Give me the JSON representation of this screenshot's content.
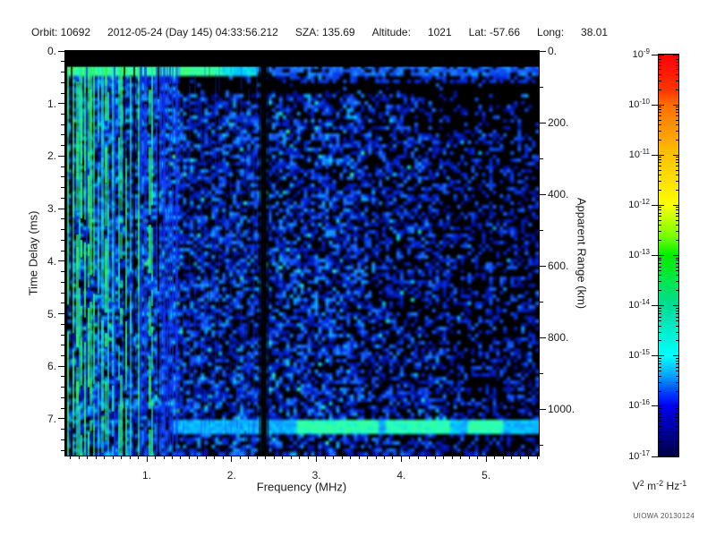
{
  "header": {
    "segments": [
      "Orbit: 10692",
      "2012-05-24 (Day 145) 04:33:56.212",
      "SZA: 135.69",
      "Altitude:",
      "1021",
      "Lat: -57.66",
      "Long:",
      "38.01"
    ]
  },
  "chart_data": {
    "type": "heatmap",
    "description": "Radar sounder ionogram spectrogram: received spectral density vs frequency and time delay. Bright green/cyan vertical striping below ~1.4 MHz (local plasma noise), a bright horizontal surface-echo band near 0.35 ms delay across all frequencies, a cyan/green horizontal echo band near 7.15 ms, a dark interference gap near 2.38 MHz, and diffuse blue speckle noise elsewhere, sparser toward high frequency.",
    "xlabel": "Frequency (MHz)",
    "ylabel_left": "Time Delay (ms)",
    "ylabel_right": "Apparent Range (km)",
    "xlim": [
      0.04,
      5.62
    ],
    "tlim": [
      0,
      7.7
    ],
    "rlim": [
      0,
      1130
    ],
    "x_major_ticks": {
      "values": [
        1,
        2,
        3,
        4,
        5
      ],
      "labels": [
        "1.",
        "2.",
        "3.",
        "4.",
        "5."
      ]
    },
    "x_minor_step_mhz": 0.1,
    "t_major_ticks": {
      "values": [
        0,
        1,
        2,
        3,
        4,
        5,
        6,
        7
      ],
      "labels": [
        "0.",
        "1.",
        "2.",
        "3.",
        "4.",
        "5.",
        "6.",
        "7."
      ]
    },
    "t_minor_step_ms": 0.2,
    "r_major_ticks": {
      "values": [
        0,
        200,
        400,
        600,
        800,
        1000
      ],
      "labels": [
        "0.",
        "200.",
        "400.",
        "600.",
        "800.",
        "1000."
      ]
    },
    "r_minor_step_km": 100,
    "grid": false,
    "colorbar": {
      "decade_exponents": [
        -9,
        -10,
        -11,
        -12,
        -13,
        -14,
        -15,
        -16,
        -17
      ],
      "base": "10",
      "unit_parts": {
        "base1": "V",
        "exp1": "2",
        "base2": "m",
        "exp2": "-2",
        "base3": "Hz",
        "exp3": "-1"
      },
      "stops": [
        {
          "p": 0.0,
          "c": "#ff0000"
        },
        {
          "p": 0.09,
          "c": "#ff3600"
        },
        {
          "p": 0.125,
          "c": "#ff6e00"
        },
        {
          "p": 0.25,
          "c": "#ffc100"
        },
        {
          "p": 0.375,
          "c": "#fbff00"
        },
        {
          "p": 0.45,
          "c": "#7bff00"
        },
        {
          "p": 0.5,
          "c": "#00ee00"
        },
        {
          "p": 0.625,
          "c": "#00dc96"
        },
        {
          "p": 0.75,
          "c": "#00ffff"
        },
        {
          "p": 0.8,
          "c": "#00a2ff"
        },
        {
          "p": 0.845,
          "c": "#0037ff"
        },
        {
          "p": 0.875,
          "c": "#0000f0"
        },
        {
          "p": 0.94,
          "c": "#000096"
        },
        {
          "p": 1.0,
          "c": "#000041"
        }
      ]
    },
    "features": {
      "blank_top_ms": 0.3,
      "surface_band_ms": [
        0.3,
        0.48
      ],
      "second_band_ms": [
        7.05,
        7.3
      ],
      "second_band_min_mhz": 1.3,
      "interference_mhz": [
        2.35,
        2.41
      ],
      "stripe_region_max_mhz": 1.35,
      "faint_stripe_max_mhz": 2.3,
      "green_patches_mhz": [
        [
          2.8,
          3.75
        ],
        [
          3.85,
          4.6
        ],
        [
          4.8,
          5.25
        ]
      ],
      "density_zones": [
        {
          "mhz": [
            0.04,
            1.4
          ],
          "density": 0.75,
          "bright": 1.0
        },
        {
          "mhz": [
            1.4,
            3.6
          ],
          "density": 0.6,
          "bright": 0.85
        },
        {
          "mhz": [
            3.6,
            4.6
          ],
          "density": 0.5,
          "bright": 0.72
        },
        {
          "mhz": [
            4.6,
            5.62
          ],
          "density": 0.38,
          "bright": 0.62
        }
      ],
      "speckle_stops": [
        {
          "p": 0.0,
          "c": [
            0,
            0,
            0
          ]
        },
        {
          "p": 0.16,
          "c": [
            0,
            0,
            100
          ]
        },
        {
          "p": 0.38,
          "c": [
            0,
            40,
            220
          ]
        },
        {
          "p": 0.55,
          "c": [
            30,
            110,
            255
          ]
        },
        {
          "p": 0.72,
          "c": [
            0,
            210,
            255
          ]
        },
        {
          "p": 0.85,
          "c": [
            40,
            255,
            190
          ]
        },
        {
          "p": 1.0,
          "c": [
            70,
            255,
            110
          ]
        }
      ],
      "stripe_colors": [
        "#2ef05a",
        "#19e8c0",
        "#1535ff"
      ]
    }
  },
  "annotations": {
    "credit": "UIOWA 20130124"
  }
}
